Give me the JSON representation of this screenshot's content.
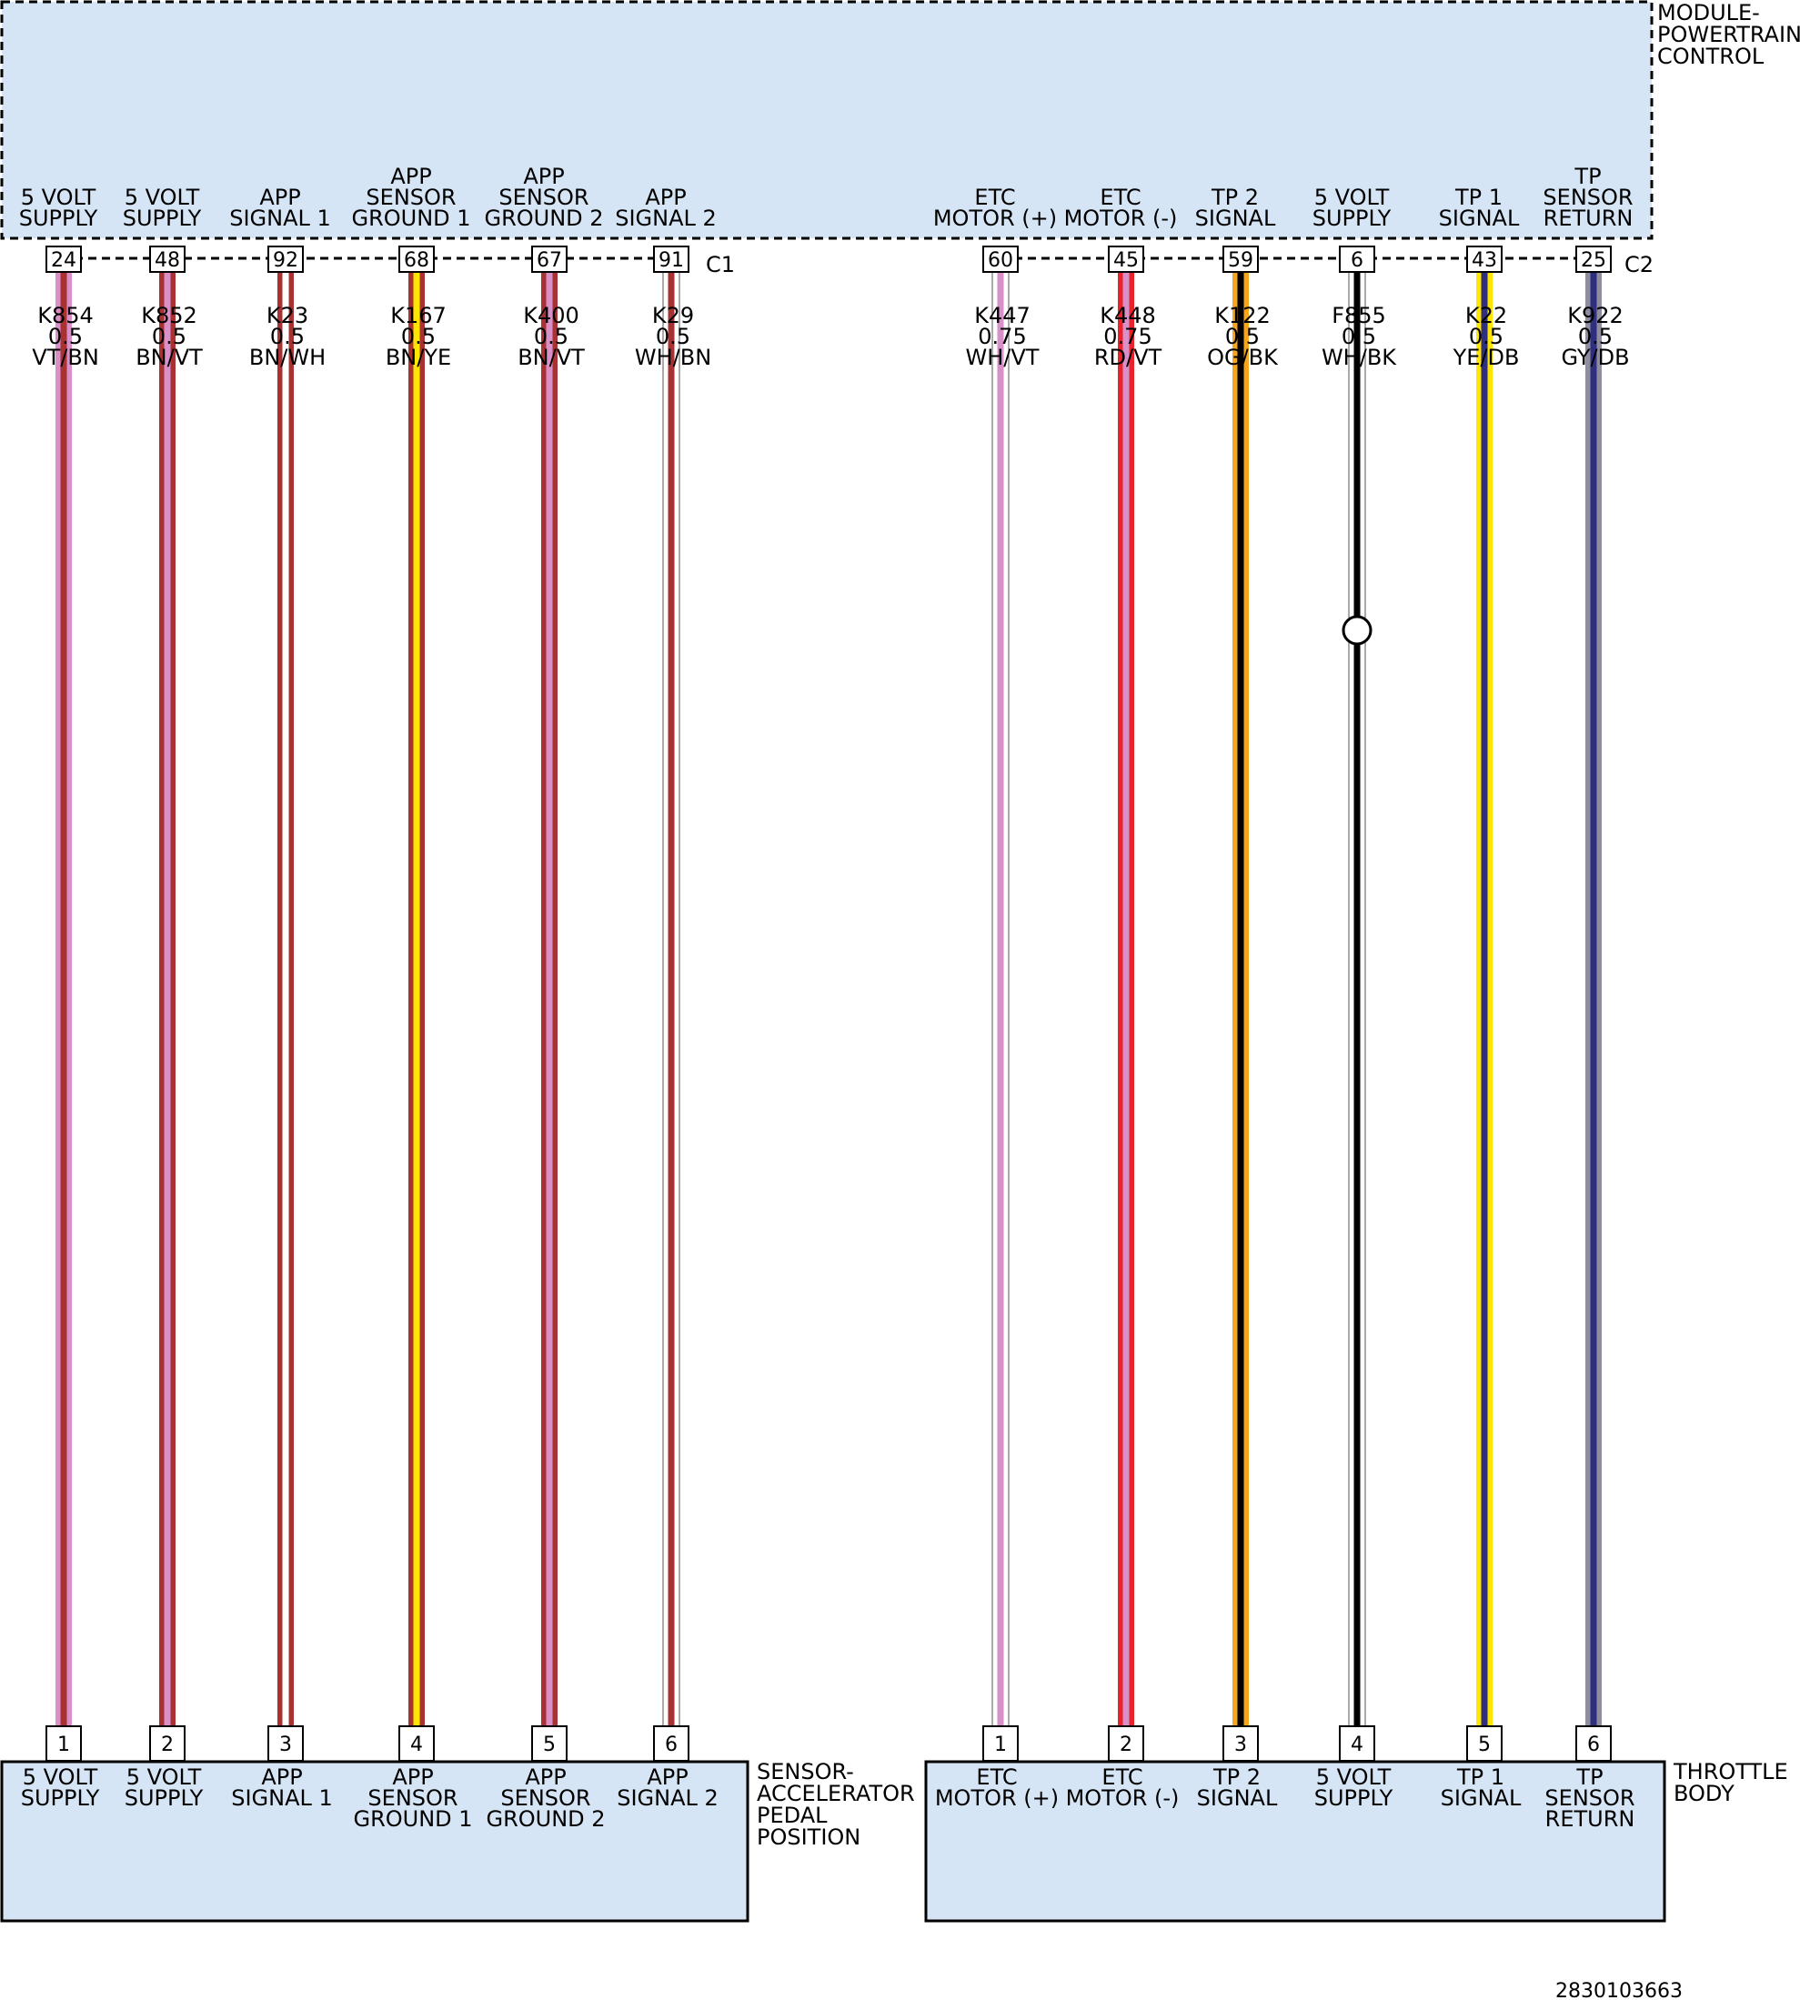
{
  "colors": {
    "module_fill": "#d6e5f5",
    "VT": "#d98fc8",
    "BN": "#a83232",
    "WH": "#ffffff",
    "YE": "#ffe600",
    "RD": "#e8232a",
    "OG": "#f5a61d",
    "BK": "#000000",
    "DB": "#2f2f80",
    "GY": "#8e8e9e"
  },
  "pcm": {
    "title_lines": [
      "MODULE-",
      "POWERTRAIN",
      "CONTROL"
    ]
  },
  "connectors": [
    {
      "name": "C1"
    },
    {
      "name": "C2"
    }
  ],
  "app_sensor": {
    "title_lines": [
      "SENSOR-",
      "ACCELERATOR",
      "PEDAL",
      "POSITION"
    ]
  },
  "throttle_body": {
    "title_lines": [
      "THROTTLE",
      "BODY"
    ]
  },
  "circuits": [
    {
      "connector": "C1",
      "pcm_pin": "24",
      "wire": "K854",
      "gauge": "0.5",
      "color": "VT/BN",
      "base": "VT",
      "stripe": "BN",
      "pcm_label": [
        "5 VOLT",
        "SUPPLY"
      ],
      "dev_pin": "1",
      "dev_label": [
        "5 VOLT",
        "SUPPLY"
      ]
    },
    {
      "connector": "C1",
      "pcm_pin": "48",
      "wire": "K852",
      "gauge": "0.5",
      "color": "BN/VT",
      "base": "BN",
      "stripe": "VT",
      "pcm_label": [
        "5 VOLT",
        "SUPPLY"
      ],
      "dev_pin": "2",
      "dev_label": [
        "5 VOLT",
        "SUPPLY"
      ]
    },
    {
      "connector": "C1",
      "pcm_pin": "92",
      "wire": "K23",
      "gauge": "0.5",
      "color": "BN/WH",
      "base": "BN",
      "stripe": "WH",
      "pcm_label": [
        "APP",
        "SIGNAL 1"
      ],
      "dev_pin": "3",
      "dev_label": [
        "APP",
        "SIGNAL 1"
      ]
    },
    {
      "connector": "C1",
      "pcm_pin": "68",
      "wire": "K167",
      "gauge": "0.5",
      "color": "BN/YE",
      "base": "BN",
      "stripe": "YE",
      "pcm_label": [
        "APP",
        "SENSOR",
        "GROUND 1"
      ],
      "dev_pin": "4",
      "dev_label": [
        "APP",
        "SENSOR",
        "GROUND 1"
      ]
    },
    {
      "connector": "C1",
      "pcm_pin": "67",
      "wire": "K400",
      "gauge": "0.5",
      "color": "BN/VT",
      "base": "BN",
      "stripe": "VT",
      "pcm_label": [
        "APP",
        "SENSOR",
        "GROUND 2"
      ],
      "dev_pin": "5",
      "dev_label": [
        "APP",
        "SENSOR",
        "GROUND 2"
      ]
    },
    {
      "connector": "C1",
      "pcm_pin": "91",
      "wire": "K29",
      "gauge": "0.5",
      "color": "WH/BN",
      "base": "WH",
      "stripe": "BN",
      "pcm_label": [
        "APP",
        "SIGNAL 2"
      ],
      "dev_pin": "6",
      "dev_label": [
        "APP",
        "SIGNAL 2"
      ]
    },
    {
      "connector": "C2",
      "pcm_pin": "60",
      "wire": "K447",
      "gauge": "0.75",
      "color": "WH/VT",
      "base": "WH",
      "stripe": "VT",
      "pcm_label": [
        "ETC",
        "MOTOR (+)"
      ],
      "dev_pin": "1",
      "dev_label": [
        "ETC",
        "MOTOR (+)"
      ]
    },
    {
      "connector": "C2",
      "pcm_pin": "45",
      "wire": "K448",
      "gauge": "0.75",
      "color": "RD/VT",
      "base": "RD",
      "stripe": "VT",
      "pcm_label": [
        "ETC",
        "MOTOR (-)"
      ],
      "dev_pin": "2",
      "dev_label": [
        "ETC",
        "MOTOR (-)"
      ]
    },
    {
      "connector": "C2",
      "pcm_pin": "59",
      "wire": "K122",
      "gauge": "0.5",
      "color": "OG/BK",
      "base": "OG",
      "stripe": "BK",
      "pcm_label": [
        "TP 2",
        "SIGNAL"
      ],
      "dev_pin": "3",
      "dev_label": [
        "TP 2",
        "SIGNAL"
      ]
    },
    {
      "connector": "C2",
      "pcm_pin": "6",
      "wire": "F855",
      "gauge": "0.5",
      "color": "WH/BK",
      "base": "WH",
      "stripe": "BK",
      "pcm_label": [
        "5 VOLT",
        "SUPPLY"
      ],
      "dev_pin": "4",
      "dev_label": [
        "5 VOLT",
        "SUPPLY"
      ],
      "splice": true
    },
    {
      "connector": "C2",
      "pcm_pin": "43",
      "wire": "K22",
      "gauge": "0.5",
      "color": "YE/DB",
      "base": "YE",
      "stripe": "DB",
      "pcm_label": [
        "TP 1",
        "SIGNAL"
      ],
      "dev_pin": "5",
      "dev_label": [
        "TP 1",
        "SIGNAL"
      ]
    },
    {
      "connector": "C2",
      "pcm_pin": "25",
      "wire": "K922",
      "gauge": "0.5",
      "color": "GY/DB",
      "base": "GY",
      "stripe": "DB",
      "pcm_label": [
        "TP",
        "SENSOR",
        "RETURN"
      ],
      "dev_pin": "6",
      "dev_label": [
        "TP",
        "SENSOR",
        "RETURN"
      ]
    }
  ],
  "figure_id": "2830103663"
}
